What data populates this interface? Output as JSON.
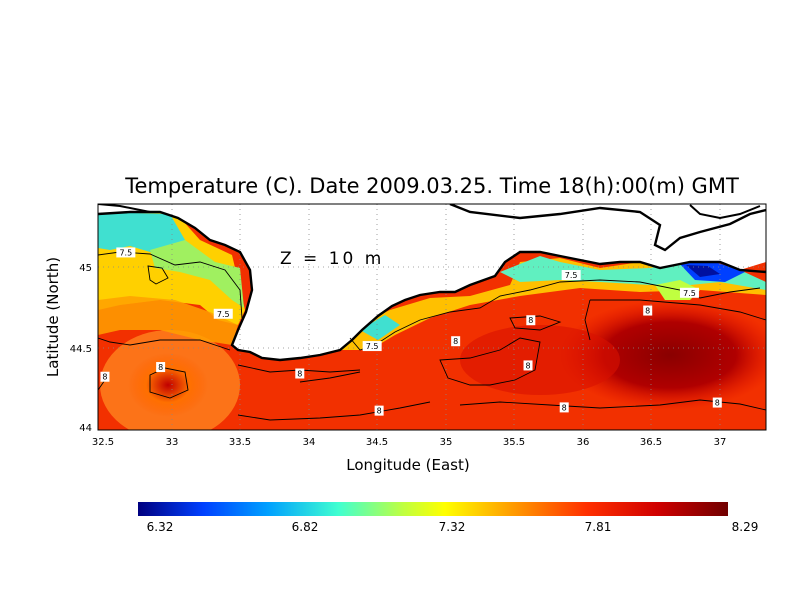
{
  "chart_data": {
    "type": "heatmap",
    "title": "Temperature (C). Date 2009.03.25. Time 18(h):00(m) GMT",
    "xlabel": "Longitude (East)",
    "ylabel": "Latitude (North)",
    "xlim": [
      32.5,
      37.3
    ],
    "ylim": [
      44.0,
      45.4
    ],
    "x_ticks": [
      "32.5",
      "33",
      "33.5",
      "34",
      "34.5",
      "35",
      "35.5",
      "36",
      "36.5",
      "37"
    ],
    "y_ticks": [
      "44",
      "44.5",
      "45"
    ],
    "grid": true,
    "depth_annotation": "Z = 10 m",
    "colorbar": {
      "ticks": [
        "6.32",
        "6.82",
        "7.32",
        "7.81",
        "8.29"
      ],
      "min": 6.32,
      "max": 8.29,
      "colors": [
        "#000080",
        "#0040ff",
        "#00c0ff",
        "#40ffd0",
        "#c0ff40",
        "#ffff00",
        "#ffa000",
        "#ff4000",
        "#e00000",
        "#800000"
      ]
    },
    "contour_levels": [
      "7.5",
      "8"
    ],
    "contour_labels": [
      {
        "text": "7.5",
        "lon": 32.7,
        "lat": 45.1
      },
      {
        "text": "7.5",
        "lon": 33.4,
        "lat": 44.72
      },
      {
        "text": "7.5",
        "lon": 34.47,
        "lat": 44.52
      },
      {
        "text": "7.5",
        "lon": 35.9,
        "lat": 44.96
      },
      {
        "text": "7.5",
        "lon": 36.75,
        "lat": 44.85
      },
      {
        "text": "8",
        "lon": 35.07,
        "lat": 44.55
      },
      {
        "text": "8",
        "lon": 35.61,
        "lat": 44.68
      },
      {
        "text": "8",
        "lon": 36.45,
        "lat": 44.74
      },
      {
        "text": "8",
        "lon": 32.95,
        "lat": 44.39
      },
      {
        "text": "8",
        "lon": 32.55,
        "lat": 44.33
      },
      {
        "text": "8",
        "lon": 33.95,
        "lat": 44.35
      },
      {
        "text": "8",
        "lon": 35.59,
        "lat": 44.4
      },
      {
        "text": "8",
        "lon": 34.52,
        "lat": 44.12
      },
      {
        "text": "8",
        "lon": 35.85,
        "lat": 44.14
      },
      {
        "text": "8",
        "lon": 36.95,
        "lat": 44.17
      }
    ]
  }
}
